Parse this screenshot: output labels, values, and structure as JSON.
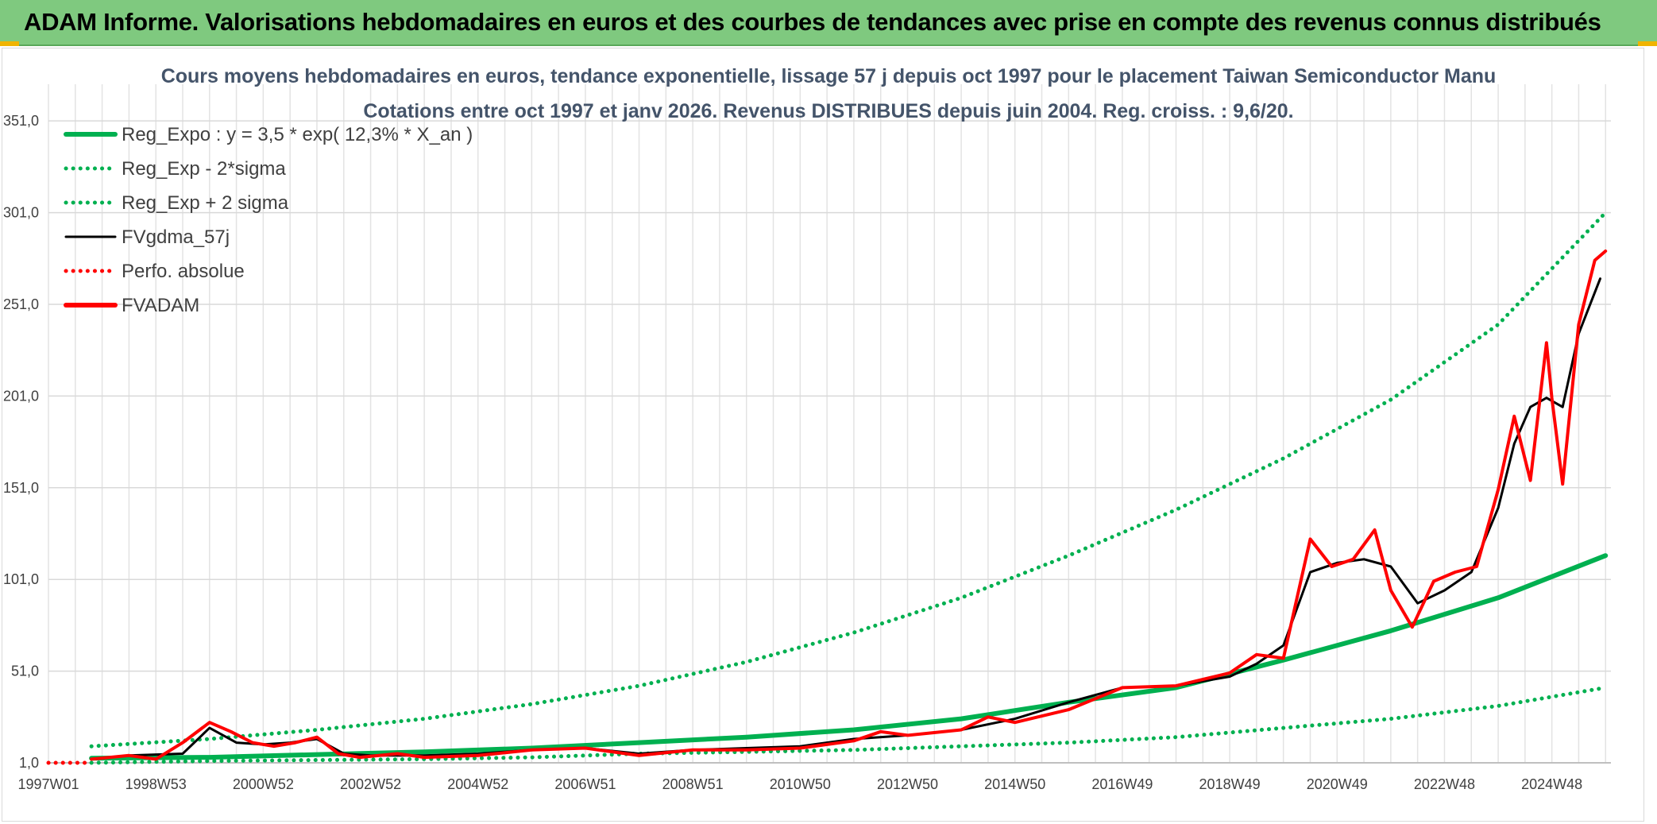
{
  "header": {
    "title": "ADAM Informe. Valorisations hebdomadaires en euros et des courbes de tendances avec prise en compte des revenus connus distribués"
  },
  "chart_data": {
    "type": "line",
    "title": "Cours moyens hebdomadaires en euros, tendance exponentielle, lissage 57 j depuis oct 1997 pour le placement Taiwan Semiconductor Manu",
    "subtitle": "Cotations entre oct 1997 et janv 2026. Revenus DISTRIBUES depuis juin 2004. Reg. croiss. : 9,6/20.",
    "xlabel": "",
    "ylabel": "",
    "xlim": [
      1997.0,
      2026.1
    ],
    "ylim": [
      1,
      371
    ],
    "grid": true,
    "legend_position": "top-left",
    "x_tick_labels": [
      {
        "x": 1997.0,
        "label": "1997W01"
      },
      {
        "x": 1999.0,
        "label": "1998W53"
      },
      {
        "x": 2001.0,
        "label": "2000W52"
      },
      {
        "x": 2003.0,
        "label": "2002W52"
      },
      {
        "x": 2005.0,
        "label": "2004W52"
      },
      {
        "x": 2007.0,
        "label": "2006W51"
      },
      {
        "x": 2009.0,
        "label": "2008W51"
      },
      {
        "x": 2011.0,
        "label": "2010W50"
      },
      {
        "x": 2013.0,
        "label": "2012W50"
      },
      {
        "x": 2015.0,
        "label": "2014W50"
      },
      {
        "x": 2017.0,
        "label": "2016W49"
      },
      {
        "x": 2019.0,
        "label": "2018W49"
      },
      {
        "x": 2021.0,
        "label": "2020W49"
      },
      {
        "x": 2023.0,
        "label": "2022W48"
      },
      {
        "x": 2025.0,
        "label": "2024W48"
      }
    ],
    "y_tick_labels": [
      {
        "y": 1,
        "label": "1,0"
      },
      {
        "y": 51,
        "label": "51,0"
      },
      {
        "y": 101,
        "label": "101,0"
      },
      {
        "y": 151,
        "label": "151,0"
      },
      {
        "y": 201,
        "label": "201,0"
      },
      {
        "y": 251,
        "label": "251,0"
      },
      {
        "y": 301,
        "label": "301,0"
      },
      {
        "y": 351,
        "label": "351,0"
      }
    ],
    "series": [
      {
        "name": "Reg_Expo : y = 3,5 * exp( 12,3% *  X_an )",
        "color": "#00b050",
        "style": "solid-thick",
        "x": [
          1997.8,
          2000,
          2002,
          2004,
          2006,
          2008,
          2010,
          2012,
          2014,
          2016,
          2018,
          2020,
          2022,
          2024,
          2026
        ],
        "y": [
          3.5,
          4,
          5.5,
          7,
          9,
          12,
          15,
          19,
          25,
          34,
          42,
          57,
          73,
          91,
          114
        ]
      },
      {
        "name": "Reg_Exp - 2*sigma",
        "color": "#00b050",
        "style": "dotted",
        "x": [
          1997.8,
          2000,
          2002,
          2004,
          2006,
          2008,
          2010,
          2012,
          2014,
          2016,
          2018,
          2020,
          2022,
          2024,
          2026
        ],
        "y": [
          1,
          2,
          2.5,
          3,
          4,
          6,
          7,
          8,
          10,
          12,
          15,
          20,
          25,
          32,
          42
        ]
      },
      {
        "name": "Reg_Exp + 2 sigma",
        "color": "#00b050",
        "style": "dotted",
        "x": [
          1997.8,
          2000,
          2002,
          2004,
          2006,
          2008,
          2010,
          2012,
          2014,
          2016,
          2018,
          2020,
          2022,
          2024,
          2026
        ],
        "y": [
          10,
          14,
          19,
          25,
          33,
          43,
          56,
          72,
          91,
          114,
          139,
          167,
          199,
          240,
          301
        ]
      },
      {
        "name": "FVgdma_57j",
        "color": "#000000",
        "style": "solid",
        "x": [
          1997.8,
          1998.5,
          1999.5,
          2000,
          2000.5,
          2001,
          2001.5,
          2002,
          2002.5,
          2003,
          2004,
          2005,
          2006,
          2007,
          2008,
          2009,
          2010,
          2011,
          2012,
          2013,
          2014,
          2015,
          2016,
          2017,
          2018,
          2019,
          2019.5,
          2020,
          2020.5,
          2021,
          2021.5,
          2022,
          2022.5,
          2023,
          2023.5,
          2024,
          2024.3,
          2024.6,
          2024.9,
          2025.2,
          2025.5,
          2025.9
        ],
        "y": [
          3,
          5,
          6,
          20,
          12,
          11,
          12,
          14,
          6,
          5,
          5,
          6,
          8,
          9,
          6,
          8,
          9,
          10,
          14,
          16,
          19,
          25,
          34,
          42,
          43,
          48,
          55,
          65,
          105,
          110,
          112,
          108,
          88,
          95,
          105,
          140,
          175,
          195,
          200,
          195,
          235,
          265
        ]
      },
      {
        "name": "Perfo. absolue",
        "color": "#ff0000",
        "style": "dotted",
        "x": [
          1997.0,
          1997.8
        ],
        "y": [
          1,
          1
        ]
      },
      {
        "name": "FVADAM",
        "color": "#ff0000",
        "style": "solid-thick",
        "x": [
          1997.8,
          1998.5,
          1999.0,
          1999.5,
          2000,
          2000.4,
          2000.8,
          2001.2,
          2001.6,
          2002.0,
          2002.4,
          2002.8,
          2003.5,
          2004,
          2005,
          2006,
          2007,
          2008,
          2009,
          2010,
          2011,
          2012,
          2012.5,
          2013,
          2014,
          2014.5,
          2015,
          2016,
          2017,
          2018,
          2019,
          2019.5,
          2020,
          2020.5,
          2020.9,
          2021.3,
          2021.7,
          2022.0,
          2022.4,
          2022.8,
          2023.2,
          2023.6,
          2024.0,
          2024.3,
          2024.6,
          2024.9,
          2025.0,
          2025.2,
          2025.5,
          2025.8,
          2026.0
        ],
        "y": [
          3,
          5,
          3,
          12,
          23,
          18,
          12,
          10,
          12,
          15,
          6,
          4,
          6,
          4,
          5,
          8,
          9,
          5,
          8,
          8,
          9,
          13,
          18,
          16,
          19,
          26,
          23,
          30,
          42,
          43,
          50,
          60,
          58,
          123,
          108,
          112,
          128,
          95,
          75,
          100,
          105,
          108,
          150,
          190,
          155,
          230,
          200,
          153,
          240,
          275,
          280
        ]
      }
    ]
  }
}
